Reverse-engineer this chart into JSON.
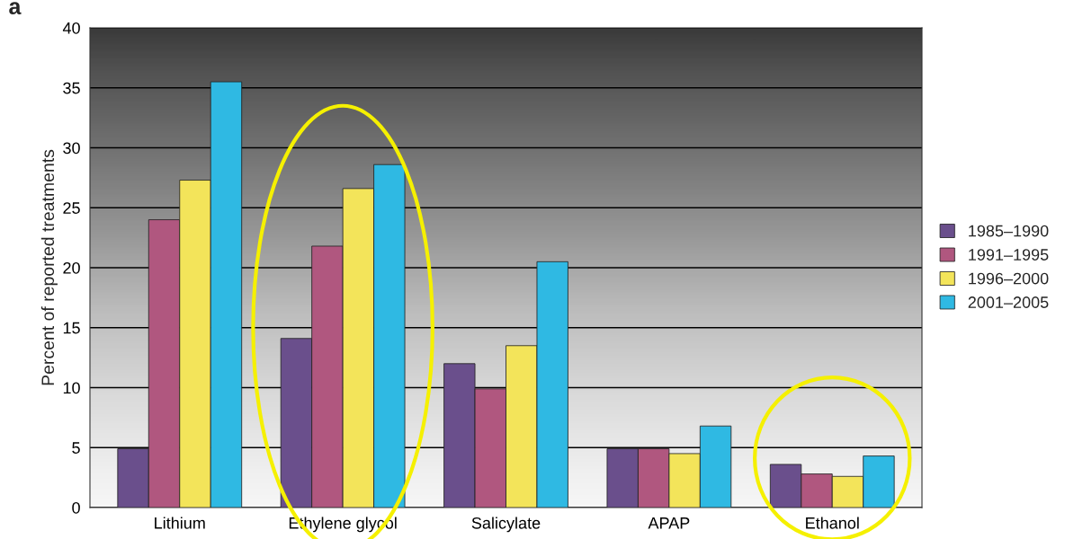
{
  "chart_data": {
    "type": "bar",
    "ylabel": "Percent of reported treatments",
    "categories": [
      "Lithium",
      "Ethylene glycol",
      "Salicylate",
      "APAP",
      "Ethanol"
    ],
    "series": [
      {
        "name": "1985–1990",
        "color": "#6a4f8c",
        "values": [
          4.9,
          14.1,
          12.0,
          4.9,
          3.6
        ]
      },
      {
        "name": "1991–1995",
        "color": "#b0577f",
        "values": [
          24.0,
          21.8,
          9.9,
          4.9,
          2.8
        ]
      },
      {
        "name": "1996–2000",
        "color": "#f3e45a",
        "values": [
          27.3,
          26.6,
          13.5,
          4.5,
          2.6
        ]
      },
      {
        "name": "2001–2005",
        "color": "#2fb9e3",
        "values": [
          35.5,
          28.6,
          20.5,
          6.8,
          4.3
        ]
      }
    ],
    "ylim": [
      0,
      40
    ],
    "yticks": [
      0,
      5,
      10,
      15,
      20,
      25,
      30,
      35,
      40
    ],
    "grid": "y",
    "legend": "right",
    "annotations": [
      "a"
    ]
  }
}
